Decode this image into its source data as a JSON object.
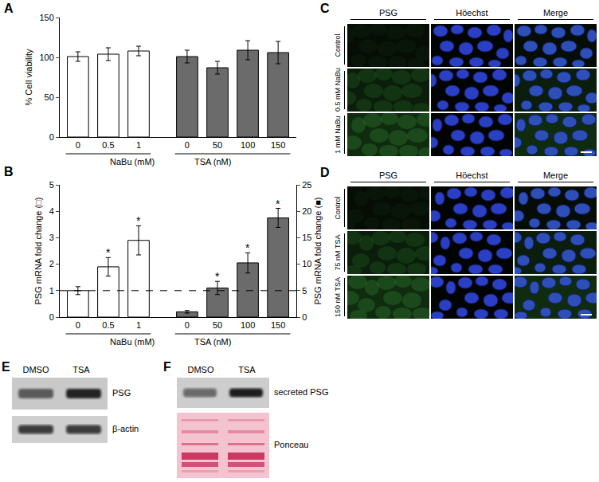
{
  "chart_data": [
    {
      "panel": "A",
      "type": "bar",
      "ylabel": "% Cell viability",
      "ylim": [
        0,
        150
      ],
      "yticks": [
        0,
        50,
        100,
        150
      ],
      "groups": [
        {
          "name": "NaBu (mM)",
          "color": "#ffffff",
          "categories": [
            "0",
            "0.5",
            "1"
          ],
          "values": [
            101,
            104,
            108
          ],
          "errors": [
            6,
            8,
            6
          ]
        },
        {
          "name": "TSA (nM)",
          "color": "#6b6b6b",
          "categories": [
            "0",
            "50",
            "100",
            "150"
          ],
          "values": [
            101,
            87,
            109,
            106
          ],
          "errors": [
            8,
            8,
            12,
            14
          ]
        }
      ]
    },
    {
      "panel": "B",
      "type": "bar",
      "ylabel": "PSG mRNA fold change (□)",
      "y2label": "PSG mRNA fold change (■)",
      "ylim": [
        0,
        5
      ],
      "yticks": [
        0,
        1,
        2,
        3,
        4,
        5
      ],
      "y2lim": [
        0,
        25
      ],
      "y2ticks": [
        0,
        5,
        10,
        15,
        20,
        25
      ],
      "reference": 1,
      "groups": [
        {
          "name": "NaBu (mM)",
          "color": "#ffffff",
          "categories": [
            "0",
            "0.5",
            "1"
          ],
          "values": [
            1,
            1.9,
            2.9
          ],
          "errors": [
            0.15,
            0.35,
            0.55
          ],
          "significance": [
            null,
            "*",
            "*"
          ]
        },
        {
          "name": "TSA (nM)",
          "color": "#6b6b6b",
          "axis": "y2",
          "categories": [
            "0",
            "50",
            "100",
            "150"
          ],
          "values": [
            1,
            5.5,
            10.25,
            18.75
          ],
          "errors": [
            0.25,
            1.25,
            1.9,
            1.8
          ],
          "significance": [
            null,
            "*",
            "*",
            "*"
          ]
        }
      ]
    }
  ],
  "images": [
    {
      "panel": "C",
      "columns": [
        "PSG",
        "Höechst",
        "Merge"
      ],
      "rows": [
        "Control",
        "0.5 mM NaBu",
        "1 mM NaBu"
      ]
    },
    {
      "panel": "D",
      "columns": [
        "PSG",
        "Höechst",
        "Merge"
      ],
      "rows": [
        "Control",
        "75 nM TSA",
        "150 nM TSA"
      ]
    }
  ],
  "blots": [
    {
      "panel": "E",
      "lanes": [
        "DMSO",
        "TSA"
      ],
      "rows": [
        "PSG",
        "β-actin"
      ]
    },
    {
      "panel": "F",
      "lanes": [
        "DMSO",
        "TSA"
      ],
      "rows": [
        "secreted PSG",
        "Ponceau"
      ]
    }
  ]
}
